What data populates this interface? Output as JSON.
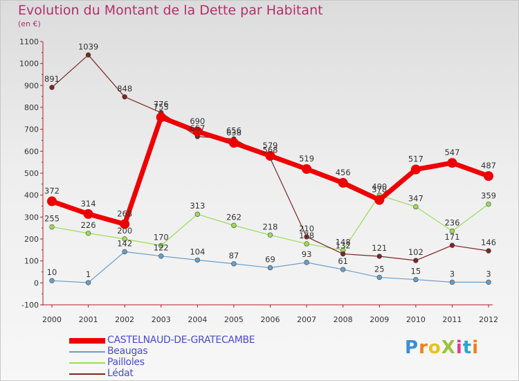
{
  "title": "Evolution du Montant de la Dette par Habitant",
  "unit_label": "(en €)",
  "brand": {
    "text": "ProXiti",
    "letters": [
      "P",
      "r",
      "o",
      "X",
      "i",
      "t",
      "i"
    ],
    "colors": [
      "#3b8fd6",
      "#f07f1e",
      "#e8c21a",
      "#9ac33c",
      "#e23c8a",
      "#2aa6c8",
      "#f07f1e"
    ]
  },
  "chart_data": {
    "type": "line",
    "title": "Evolution du Montant de la Dette par Habitant",
    "ylabel": "(en €)",
    "xlabel": "",
    "categories": [
      "2000",
      "2001",
      "2002",
      "2003",
      "2004",
      "2005",
      "2006",
      "2007",
      "2008",
      "2009",
      "2010",
      "2011",
      "2012"
    ],
    "ylim": [
      -100,
      1100
    ],
    "yticks": [
      -100,
      0,
      100,
      200,
      300,
      400,
      500,
      600,
      700,
      800,
      900,
      1000,
      1100
    ],
    "grid": false,
    "legend_position": "bottom-left",
    "series": [
      {
        "name": "CASTELNAUD-DE-GRATECAMBE",
        "color": "#ee0000",
        "emphasis": true,
        "values": [
          372,
          314,
          268,
          755,
          690,
          638,
          579,
          519,
          456,
          378,
          517,
          547,
          487
        ]
      },
      {
        "name": "Beaugas",
        "color": "#6a9ec8",
        "values": [
          10,
          1,
          142,
          122,
          104,
          87,
          69,
          93,
          61,
          25,
          15,
          3,
          3
        ]
      },
      {
        "name": "Pailloles",
        "color": "#99dd55",
        "values": [
          255,
          226,
          200,
          170,
          313,
          262,
          218,
          178,
          148,
          400,
          347,
          236,
          359
        ]
      },
      {
        "name": "Lédat",
        "color": "#7a2626",
        "values": [
          891,
          1039,
          848,
          776,
          667,
          656,
          568,
          210,
          132,
          121,
          102,
          171,
          146
        ]
      }
    ]
  }
}
